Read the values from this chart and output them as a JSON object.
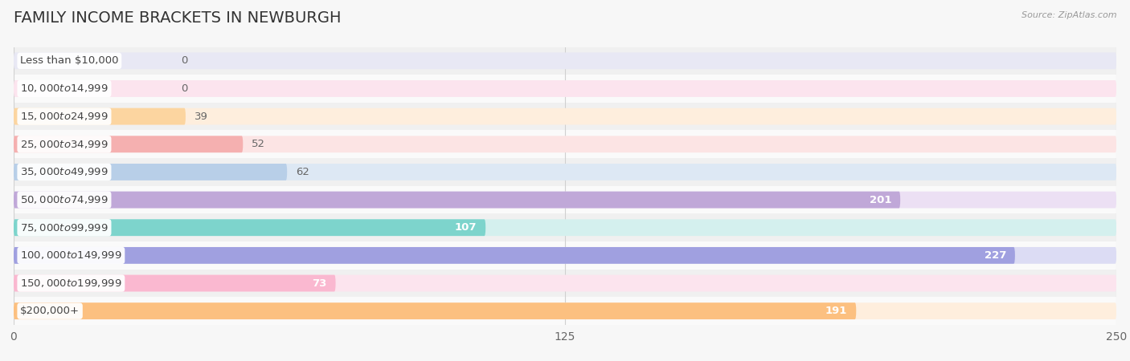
{
  "title": "FAMILY INCOME BRACKETS IN NEWBURGH",
  "source": "Source: ZipAtlas.com",
  "categories": [
    "Less than $10,000",
    "$10,000 to $14,999",
    "$15,000 to $24,999",
    "$25,000 to $34,999",
    "$35,000 to $49,999",
    "$50,000 to $74,999",
    "$75,000 to $99,999",
    "$100,000 to $149,999",
    "$150,000 to $199,999",
    "$200,000+"
  ],
  "values": [
    0,
    0,
    39,
    52,
    62,
    201,
    107,
    227,
    73,
    191
  ],
  "bar_colors": [
    "#c5c5e8",
    "#f7b8cf",
    "#fcd5a0",
    "#f5b0b0",
    "#b8cfe8",
    "#c0a8d8",
    "#7dd4cc",
    "#a0a0e0",
    "#fab8d0",
    "#fcc080"
  ],
  "bar_bg_colors": [
    "#e8e8f4",
    "#fce4ee",
    "#feeedd",
    "#fce4e4",
    "#dde8f4",
    "#ece0f4",
    "#d4f0ee",
    "#dcdcf4",
    "#fce4ee",
    "#feeedd"
  ],
  "row_bg_light": "#f7f7f7",
  "row_bg_dark": "#eeeeee",
  "xlim": [
    0,
    250
  ],
  "xticks": [
    0,
    125,
    250
  ],
  "title_fontsize": 14,
  "label_fontsize": 9.5,
  "value_fontsize": 9.5
}
